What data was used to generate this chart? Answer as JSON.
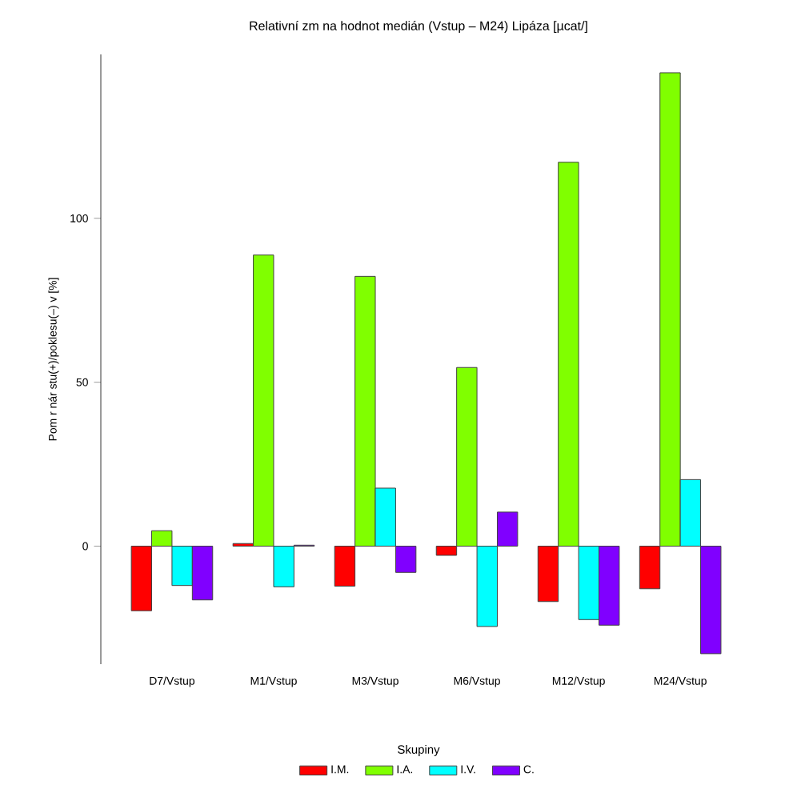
{
  "chart_data": {
    "type": "bar",
    "title": "Relativní zm  na hodnot medián   (Vstup – M24)   Lipáza [µcat/]",
    "ylabel": "Pom  r nár  stu(+)/poklesu(–) v [%]",
    "legend_title": "Skupiny",
    "categories": [
      "D7/Vstup",
      "M1/Vstup",
      "M3/Vstup",
      "M6/Vstup",
      "M12/Vstup",
      "M24/Vstup"
    ],
    "series": [
      {
        "name": "I.M.",
        "color": "#ff0000",
        "values": [
          -19.7,
          0.8,
          -12.2,
          -2.8,
          -16.9,
          -13.0
        ]
      },
      {
        "name": "I.A.",
        "color": "#80ff00",
        "values": [
          4.7,
          88.8,
          82.3,
          54.5,
          117.1,
          144.4
        ]
      },
      {
        "name": "I.V.",
        "color": "#00ffff",
        "values": [
          -12.0,
          -12.4,
          17.7,
          -24.5,
          -22.4,
          20.3
        ]
      },
      {
        "name": "C.",
        "color": "#8000ff",
        "values": [
          -16.4,
          0.3,
          -8.0,
          10.4,
          -24.1,
          -32.8
        ]
      }
    ],
    "ylim": [
      -36,
      150
    ],
    "yticks": [
      0,
      50,
      100
    ],
    "legend": "bottom"
  }
}
